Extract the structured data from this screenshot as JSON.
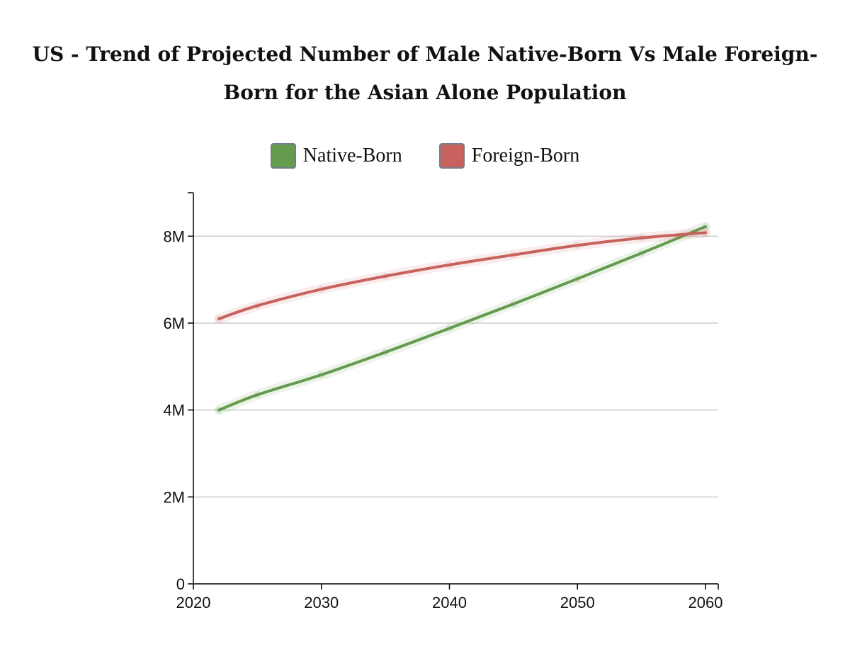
{
  "chart_data": {
    "type": "line",
    "title": "US - Trend of Projected Number of Male Native-Born Vs Male Foreign-Born for the Asian Alone Population",
    "xlabel": "",
    "ylabel": "",
    "xlim": [
      2020,
      2061
    ],
    "ylim": [
      0,
      9000000
    ],
    "x_ticks": [
      2020,
      2030,
      2040,
      2050,
      2060
    ],
    "x_tick_labels": [
      "2020",
      "2030",
      "2040",
      "2050",
      "2060"
    ],
    "y_ticks": [
      0,
      2000000,
      4000000,
      6000000,
      8000000
    ],
    "y_tick_labels": [
      "0",
      "2M",
      "4M",
      "6M",
      "8M"
    ],
    "grid": "horizontal",
    "legend_position": "top-center",
    "x": [
      2022,
      2025,
      2030,
      2035,
      2040,
      2045,
      2050,
      2055,
      2060
    ],
    "series": [
      {
        "name": "Native-Born",
        "color": "#649b4e",
        "values": [
          4000000,
          4350000,
          4810000,
          5330000,
          5880000,
          6440000,
          7020000,
          7610000,
          8220000
        ]
      },
      {
        "name": "Foreign-Born",
        "color": "#c8625f",
        "values": [
          6100000,
          6400000,
          6780000,
          7080000,
          7340000,
          7570000,
          7790000,
          7960000,
          8080000
        ]
      }
    ]
  }
}
